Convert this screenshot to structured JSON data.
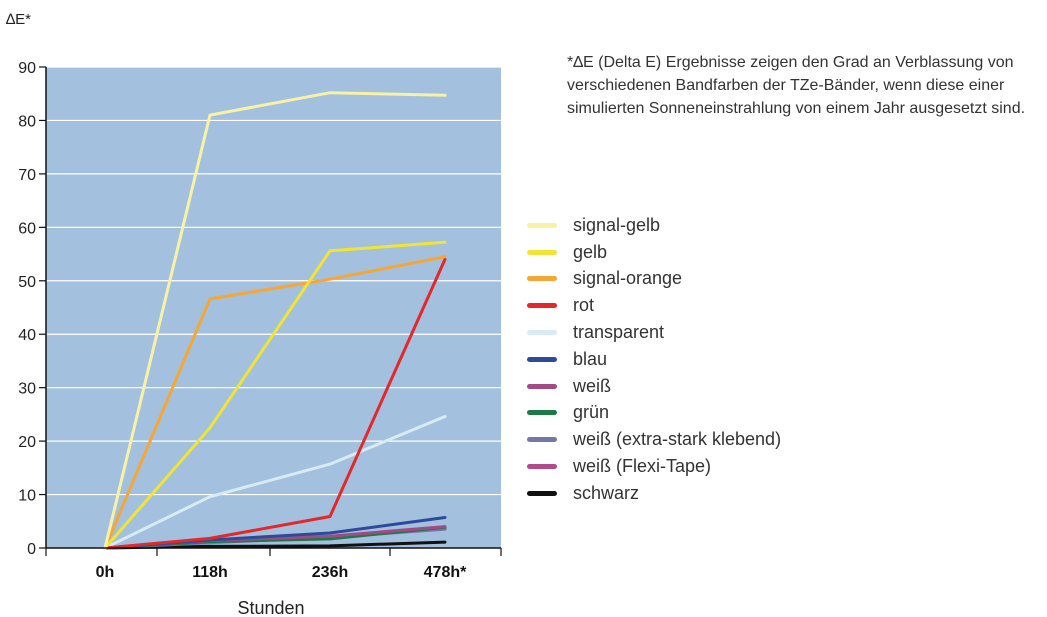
{
  "chart_data": {
    "type": "line",
    "title": "",
    "ylabel": "∆E*",
    "xlabel": "Stunden",
    "categories": [
      "0h",
      "118h",
      "236h",
      "478h*"
    ],
    "ylim": [
      0,
      90
    ],
    "yticks": [
      0,
      10,
      20,
      30,
      40,
      50,
      60,
      70,
      80,
      90
    ],
    "grid": true,
    "legend_position": "right",
    "plot_background": "#a3c0de",
    "series": [
      {
        "name": "signal-gelb",
        "color": "#f7f2a5",
        "values": [
          0,
          81,
          85.2,
          84.7
        ]
      },
      {
        "name": "gelb",
        "color": "#f0e535",
        "values": [
          0,
          22.5,
          55.6,
          57.2
        ]
      },
      {
        "name": "signal-orange",
        "color": "#f4a734",
        "values": [
          0,
          46.6,
          50.3,
          54.5
        ]
      },
      {
        "name": "rot",
        "color": "#e2282a",
        "values": [
          0,
          1.8,
          5.9,
          54
        ]
      },
      {
        "name": "transparent",
        "color": "#d8ebf5",
        "values": [
          0,
          9.6,
          15.7,
          24.6
        ]
      },
      {
        "name": "blau",
        "color": "#2e4a9b",
        "values": [
          0,
          1.5,
          2.8,
          5.7
        ]
      },
      {
        "name": "weiß",
        "color": "#a34a86",
        "values": [
          0,
          1.4,
          2.2,
          4
        ]
      },
      {
        "name": "grün",
        "color": "#1d7a46",
        "values": [
          0,
          1.2,
          1.7,
          3.9
        ]
      },
      {
        "name": "weiß (extra-stark klebend)",
        "color": "#7478a8",
        "values": [
          0,
          1,
          2,
          3.5
        ]
      },
      {
        "name": "weiß (Flexi-Tape)",
        "color": "#b04a8b",
        "values": [
          0,
          1.1,
          2.1,
          3.7
        ]
      },
      {
        "name": "schwarz",
        "color": "#111111",
        "values": [
          0,
          0.3,
          0.4,
          1.1
        ]
      }
    ],
    "annotation": "*∆E (Delta E) Ergebnisse zeigen den Grad an Verblassung von verschiedenen Bandfarben der TZe-Bänder, wenn diese einer simulierten Sonneneinstrahlung von einem Jahr ausgesetzt sind."
  }
}
